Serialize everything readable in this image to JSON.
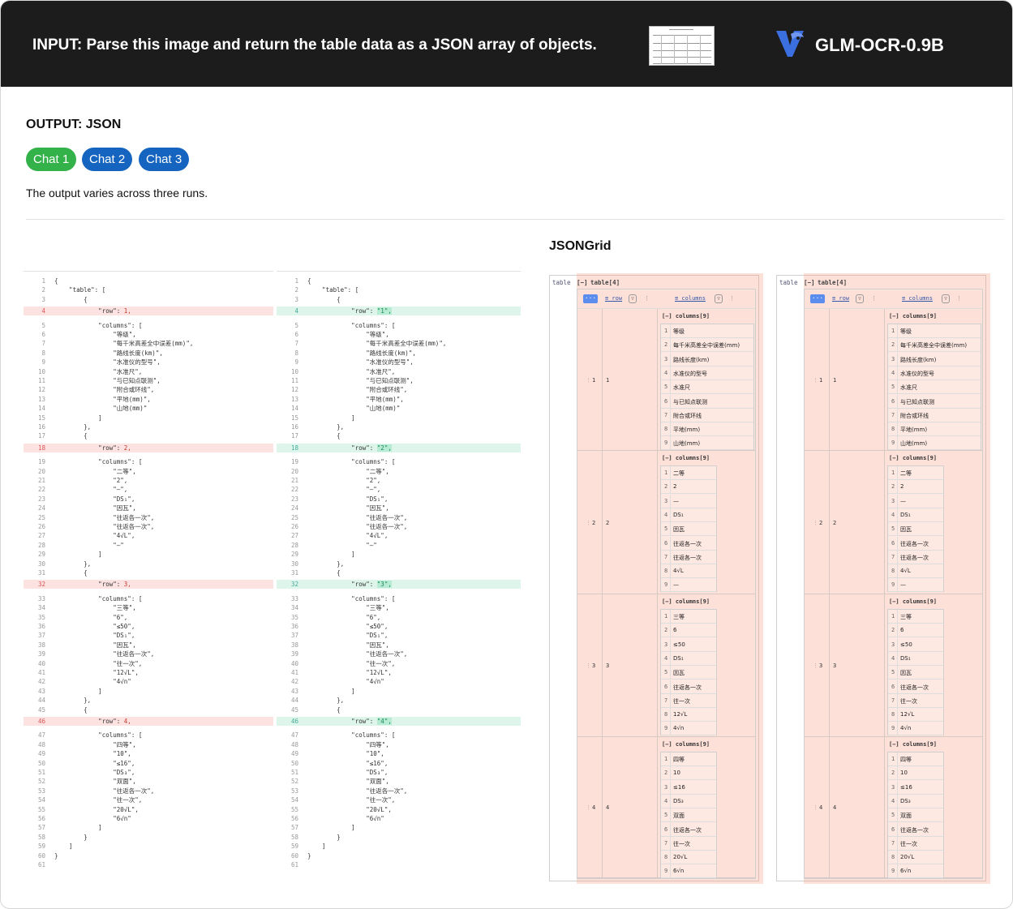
{
  "header": {
    "prompt": "INPUT: Parse this image and return the table data as a JSON array of objects.",
    "model": "GLM-OCR-0.9B",
    "accent": "#3b6fe0"
  },
  "output_label": "OUTPUT: JSON",
  "chats": [
    "Chat 1",
    "Chat 2",
    "Chat 3"
  ],
  "note": "The output varies across three runs.",
  "jsongrid_title": "JSONGrid",
  "diff_left": [
    {
      "ln": "1",
      "t": "{",
      "k": ""
    },
    {
      "ln": "2",
      "t": "    \"table\": [",
      "k": ""
    },
    {
      "ln": "3",
      "t": "        {",
      "k": ""
    },
    {
      "ln": "4",
      "t": "            \"row\": ",
      "v": "1,",
      "k": "del"
    },
    {
      "ln": "5",
      "t": "            \"columns\": [",
      "k": ""
    },
    {
      "ln": "6",
      "t": "                \"等级\",",
      "k": ""
    },
    {
      "ln": "7",
      "t": "                \"每千米高差全中误差(mm)\",",
      "k": ""
    },
    {
      "ln": "8",
      "t": "                \"路线长度(km)\",",
      "k": ""
    },
    {
      "ln": "9",
      "t": "                \"水准仪的型号\",",
      "k": ""
    },
    {
      "ln": "10",
      "t": "                \"水准尺\",",
      "k": ""
    },
    {
      "ln": "11",
      "t": "                \"与已知点联测\",",
      "k": ""
    },
    {
      "ln": "12",
      "t": "                \"附合或环线\",",
      "k": ""
    },
    {
      "ln": "13",
      "t": "                \"平地(mm)\",",
      "k": ""
    },
    {
      "ln": "14",
      "t": "                \"山地(mm)\"",
      "k": ""
    },
    {
      "ln": "15",
      "t": "            ]",
      "k": ""
    },
    {
      "ln": "16",
      "t": "        },",
      "k": ""
    },
    {
      "ln": "17",
      "t": "        {",
      "k": ""
    },
    {
      "ln": "18",
      "t": "            \"row\": ",
      "v": "2,",
      "k": "del"
    },
    {
      "ln": "19",
      "t": "            \"columns\": [",
      "k": ""
    },
    {
      "ln": "20",
      "t": "                \"二等\",",
      "k": ""
    },
    {
      "ln": "21",
      "t": "                \"2\",",
      "k": ""
    },
    {
      "ln": "22",
      "t": "                \"—\",",
      "k": ""
    },
    {
      "ln": "23",
      "t": "                \"DS₁\",",
      "k": ""
    },
    {
      "ln": "24",
      "t": "                \"因瓦\",",
      "k": ""
    },
    {
      "ln": "25",
      "t": "                \"往返各一次\",",
      "k": ""
    },
    {
      "ln": "26",
      "t": "                \"往返各一次\",",
      "k": ""
    },
    {
      "ln": "27",
      "t": "                \"4√L\",",
      "k": ""
    },
    {
      "ln": "28",
      "t": "                \"—\"",
      "k": ""
    },
    {
      "ln": "29",
      "t": "            ]",
      "k": ""
    },
    {
      "ln": "30",
      "t": "        },",
      "k": ""
    },
    {
      "ln": "31",
      "t": "        {",
      "k": ""
    },
    {
      "ln": "32",
      "t": "            \"row\": ",
      "v": "3,",
      "k": "del"
    },
    {
      "ln": "33",
      "t": "            \"columns\": [",
      "k": ""
    },
    {
      "ln": "34",
      "t": "                \"三等\",",
      "k": ""
    },
    {
      "ln": "35",
      "t": "                \"6\",",
      "k": ""
    },
    {
      "ln": "36",
      "t": "                \"≤50\",",
      "k": ""
    },
    {
      "ln": "37",
      "t": "                \"DS₁\",",
      "k": ""
    },
    {
      "ln": "38",
      "t": "                \"因瓦\",",
      "k": ""
    },
    {
      "ln": "39",
      "t": "                \"往返各一次\",",
      "k": ""
    },
    {
      "ln": "40",
      "t": "                \"往一次\",",
      "k": ""
    },
    {
      "ln": "41",
      "t": "                \"12√L\",",
      "k": ""
    },
    {
      "ln": "42",
      "t": "                \"4√n\"",
      "k": ""
    },
    {
      "ln": "43",
      "t": "            ]",
      "k": ""
    },
    {
      "ln": "44",
      "t": "        },",
      "k": ""
    },
    {
      "ln": "45",
      "t": "        {",
      "k": ""
    },
    {
      "ln": "46",
      "t": "            \"row\": ",
      "v": "4,",
      "k": "del"
    },
    {
      "ln": "47",
      "t": "            \"columns\": [",
      "k": ""
    },
    {
      "ln": "48",
      "t": "                \"四等\",",
      "k": ""
    },
    {
      "ln": "49",
      "t": "                \"10\",",
      "k": ""
    },
    {
      "ln": "50",
      "t": "                \"≤16\",",
      "k": ""
    },
    {
      "ln": "51",
      "t": "                \"DS₃\",",
      "k": ""
    },
    {
      "ln": "52",
      "t": "                \"双面\",",
      "k": ""
    },
    {
      "ln": "53",
      "t": "                \"往返各一次\",",
      "k": ""
    },
    {
      "ln": "54",
      "t": "                \"往一次\",",
      "k": ""
    },
    {
      "ln": "55",
      "t": "                \"20√L\",",
      "k": ""
    },
    {
      "ln": "56",
      "t": "                \"6√n\"",
      "k": ""
    },
    {
      "ln": "57",
      "t": "            ]",
      "k": ""
    },
    {
      "ln": "58",
      "t": "        }",
      "k": ""
    },
    {
      "ln": "59",
      "t": "    ]",
      "k": ""
    },
    {
      "ln": "60",
      "t": "}",
      "k": ""
    },
    {
      "ln": "61",
      "t": "",
      "k": ""
    }
  ],
  "diff_right": [
    {
      "ln": "1",
      "t": "{",
      "k": ""
    },
    {
      "ln": "2",
      "t": "    \"table\": [",
      "k": ""
    },
    {
      "ln": "3",
      "t": "        {",
      "k": ""
    },
    {
      "ln": "4",
      "t": "            \"row\": ",
      "v": "\"1\",",
      "k": "add"
    },
    {
      "ln": "5",
      "t": "            \"columns\": [",
      "k": ""
    },
    {
      "ln": "6",
      "t": "                \"等级\",",
      "k": ""
    },
    {
      "ln": "7",
      "t": "                \"每千米高差全中误差(mm)\",",
      "k": ""
    },
    {
      "ln": "8",
      "t": "                \"路线长度(km)\",",
      "k": ""
    },
    {
      "ln": "9",
      "t": "                \"水准仪的型号\",",
      "k": ""
    },
    {
      "ln": "10",
      "t": "                \"水准尺\",",
      "k": ""
    },
    {
      "ln": "11",
      "t": "                \"与已知点联测\",",
      "k": ""
    },
    {
      "ln": "12",
      "t": "                \"附合或环线\",",
      "k": ""
    },
    {
      "ln": "13",
      "t": "                \"平地(mm)\",",
      "k": ""
    },
    {
      "ln": "14",
      "t": "                \"山地(mm)\"",
      "k": ""
    },
    {
      "ln": "15",
      "t": "            ]",
      "k": ""
    },
    {
      "ln": "16",
      "t": "        },",
      "k": ""
    },
    {
      "ln": "17",
      "t": "        {",
      "k": ""
    },
    {
      "ln": "18",
      "t": "            \"row\": ",
      "v": "\"2\",",
      "k": "add"
    },
    {
      "ln": "19",
      "t": "            \"columns\": [",
      "k": ""
    },
    {
      "ln": "20",
      "t": "                \"二等\",",
      "k": ""
    },
    {
      "ln": "21",
      "t": "                \"2\",",
      "k": ""
    },
    {
      "ln": "22",
      "t": "                \"—\",",
      "k": ""
    },
    {
      "ln": "23",
      "t": "                \"DS₁\",",
      "k": ""
    },
    {
      "ln": "24",
      "t": "                \"因瓦\",",
      "k": ""
    },
    {
      "ln": "25",
      "t": "                \"往返各一次\",",
      "k": ""
    },
    {
      "ln": "26",
      "t": "                \"往返各一次\",",
      "k": ""
    },
    {
      "ln": "27",
      "t": "                \"4√L\",",
      "k": ""
    },
    {
      "ln": "28",
      "t": "                \"—\"",
      "k": ""
    },
    {
      "ln": "29",
      "t": "            ]",
      "k": ""
    },
    {
      "ln": "30",
      "t": "        },",
      "k": ""
    },
    {
      "ln": "31",
      "t": "        {",
      "k": ""
    },
    {
      "ln": "32",
      "t": "            \"row\": ",
      "v": "\"3\",",
      "k": "add"
    },
    {
      "ln": "33",
      "t": "            \"columns\": [",
      "k": ""
    },
    {
      "ln": "34",
      "t": "                \"三等\",",
      "k": ""
    },
    {
      "ln": "35",
      "t": "                \"6\",",
      "k": ""
    },
    {
      "ln": "36",
      "t": "                \"≤50\",",
      "k": ""
    },
    {
      "ln": "37",
      "t": "                \"DS₁\",",
      "k": ""
    },
    {
      "ln": "38",
      "t": "                \"因瓦\",",
      "k": ""
    },
    {
      "ln": "39",
      "t": "                \"往返各一次\",",
      "k": ""
    },
    {
      "ln": "40",
      "t": "                \"往一次\",",
      "k": ""
    },
    {
      "ln": "41",
      "t": "                \"12√L\",",
      "k": ""
    },
    {
      "ln": "42",
      "t": "                \"4√n\"",
      "k": ""
    },
    {
      "ln": "43",
      "t": "            ]",
      "k": ""
    },
    {
      "ln": "44",
      "t": "        },",
      "k": ""
    },
    {
      "ln": "45",
      "t": "        {",
      "k": ""
    },
    {
      "ln": "46",
      "t": "            \"row\": ",
      "v": "\"4\",",
      "k": "add"
    },
    {
      "ln": "47",
      "t": "            \"columns\": [",
      "k": ""
    },
    {
      "ln": "48",
      "t": "                \"四等\",",
      "k": ""
    },
    {
      "ln": "49",
      "t": "                \"10\",",
      "k": ""
    },
    {
      "ln": "50",
      "t": "                \"≤16\",",
      "k": ""
    },
    {
      "ln": "51",
      "t": "                \"DS₃\",",
      "k": ""
    },
    {
      "ln": "52",
      "t": "                \"双面\",",
      "k": ""
    },
    {
      "ln": "53",
      "t": "                \"往返各一次\",",
      "k": ""
    },
    {
      "ln": "54",
      "t": "                \"往一次\",",
      "k": ""
    },
    {
      "ln": "55",
      "t": "                \"20√L\",",
      "k": ""
    },
    {
      "ln": "56",
      "t": "                \"6√n\"",
      "k": ""
    },
    {
      "ln": "57",
      "t": "            ]",
      "k": ""
    },
    {
      "ln": "58",
      "t": "        }",
      "k": ""
    },
    {
      "ln": "59",
      "t": "    ]",
      "k": ""
    },
    {
      "ln": "60",
      "t": "}",
      "k": ""
    },
    {
      "ln": "61",
      "t": "",
      "k": ""
    }
  ],
  "grid": {
    "root_label": "table",
    "toggle": "[−]",
    "table_label": "table[4]",
    "menu": "···",
    "col_row": "≡ row",
    "col_columns": "≡ columns",
    "filter": "▽",
    "kebab": "⋮",
    "columns_label": "columns[9]",
    "rows": [
      {
        "idx": "1",
        "val": "1",
        "cells": [
          "等级",
          "每千米高差全中误差(mm)",
          "路线长度(km)",
          "水准仪的型号",
          "水准尺",
          "与已知点联测",
          "附合或环线",
          "平地(mm)",
          "山地(mm)"
        ]
      },
      {
        "idx": "2",
        "val": "2",
        "cells": [
          "二等",
          "2",
          "—",
          "DS₁",
          "因瓦",
          "往返各一次",
          "往返各一次",
          "4√L",
          "—"
        ]
      },
      {
        "idx": "3",
        "val": "3",
        "cells": [
          "三等",
          "6",
          "≤50",
          "DS₁",
          "因瓦",
          "往返各一次",
          "往一次",
          "12√L",
          "4√n"
        ]
      },
      {
        "idx": "4",
        "val": "4",
        "cells": [
          "四等",
          "10",
          "≤16",
          "DS₃",
          "双面",
          "往返各一次",
          "往一次",
          "20√L",
          "6√n"
        ]
      }
    ]
  }
}
